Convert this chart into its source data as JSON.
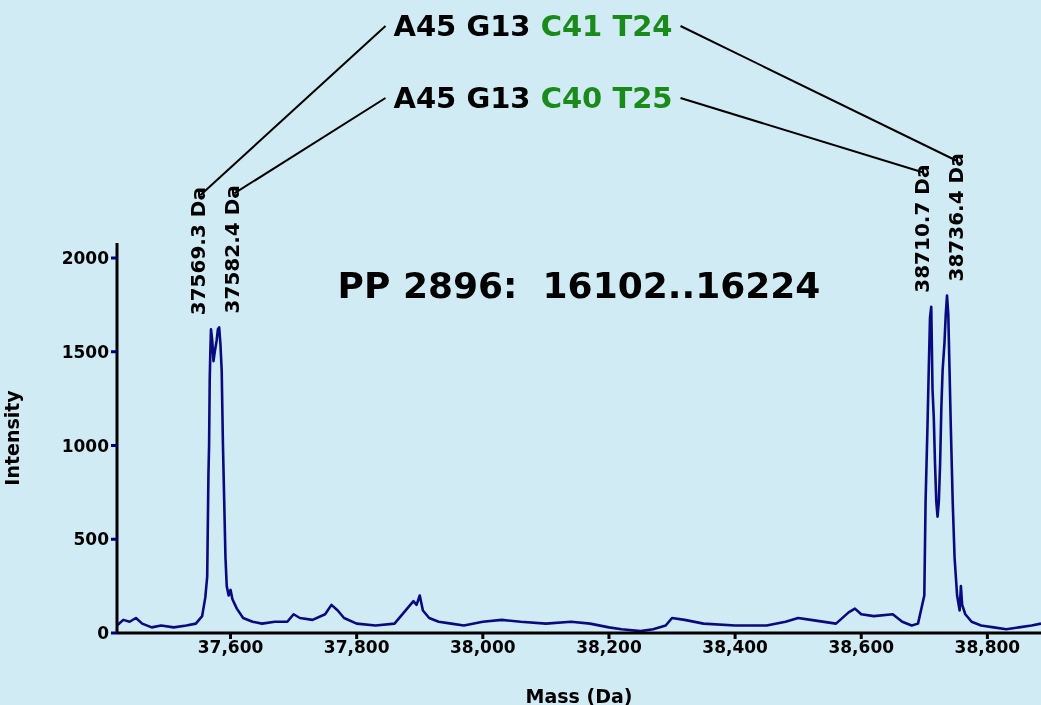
{
  "chart_data": {
    "type": "line",
    "title": "PP 2896:  16102..16224",
    "xlabel": "Mass (Da)",
    "ylabel": "Intensity",
    "annotations": [
      "A45 G13 C41 T24",
      "A45 G13 C40 T25",
      {
        "text": "37569.3 Da",
        "x": 37569.3,
        "y": 1620
      },
      {
        "text": "37582.4 Da",
        "x": 37582.4,
        "y": 1630
      },
      {
        "text": "38710.7 Da",
        "x": 38710.7,
        "y": 1740
      },
      {
        "text": "38736.4 Da",
        "x": 38736.4,
        "y": 1800
      }
    ],
    "xlim": [
      37420,
      38885
    ],
    "xticks": [
      {
        "value": 37600,
        "label": "37,600"
      },
      {
        "value": 37800,
        "label": "37,800"
      },
      {
        "value": 38000,
        "label": "38,000"
      },
      {
        "value": 38200,
        "label": "38,200"
      },
      {
        "value": 38400,
        "label": "38,400"
      },
      {
        "value": 38600,
        "label": "38,600"
      },
      {
        "value": 38800,
        "label": "38,800"
      }
    ],
    "ylim": [
      0,
      2080
    ],
    "yticks": [
      0,
      500,
      1000,
      1500,
      2000
    ],
    "grid": false,
    "legend": false,
    "marker": "none",
    "line_style": "solid",
    "series": [
      {
        "color": "#0a0a80",
        "x": [
          37420,
          37430,
          37440,
          37450,
          37460,
          37475,
          37490,
          37510,
          37530,
          37545,
          37555,
          37560,
          37563,
          37565,
          37566,
          37567,
          37568,
          37569,
          37571,
          37573,
          37575,
          37578,
          37580,
          37582,
          37584,
          37586,
          37588,
          37590,
          37592,
          37594,
          37597,
          37600,
          37603,
          37610,
          37620,
          37635,
          37650,
          37670,
          37690,
          37700,
          37710,
          37730,
          37750,
          37760,
          37770,
          37780,
          37800,
          37830,
          37860,
          37880,
          37890,
          37895,
          37900,
          37905,
          37915,
          37930,
          37950,
          37970,
          38000,
          38030,
          38060,
          38100,
          38140,
          38170,
          38200,
          38220,
          38250,
          38270,
          38290,
          38300,
          38320,
          38350,
          38400,
          38450,
          38480,
          38500,
          38520,
          38560,
          38580,
          38590,
          38600,
          38620,
          38650,
          38665,
          38680,
          38690,
          38700,
          38702,
          38705,
          38707,
          38709,
          38711,
          38713,
          38715,
          38717,
          38719,
          38721,
          38723,
          38725,
          38727,
          38729,
          38732,
          38734,
          38736,
          38738,
          38740,
          38742,
          38745,
          38748,
          38752,
          38756,
          38758,
          38760,
          38765,
          38775,
          38790,
          38810,
          38830,
          38850,
          38870,
          38885
        ],
        "values": [
          40,
          70,
          60,
          80,
          50,
          30,
          40,
          30,
          40,
          50,
          90,
          190,
          300,
          850,
          1000,
          1350,
          1500,
          1620,
          1560,
          1450,
          1500,
          1560,
          1620,
          1630,
          1540,
          1400,
          1000,
          700,
          400,
          250,
          200,
          230,
          180,
          130,
          80,
          60,
          50,
          60,
          60,
          100,
          80,
          70,
          100,
          150,
          120,
          80,
          50,
          40,
          50,
          130,
          170,
          150,
          200,
          120,
          80,
          60,
          50,
          40,
          60,
          70,
          60,
          50,
          60,
          50,
          30,
          20,
          10,
          20,
          40,
          80,
          70,
          50,
          40,
          40,
          60,
          80,
          70,
          50,
          110,
          130,
          100,
          90,
          100,
          60,
          40,
          50,
          200,
          700,
          1100,
          1400,
          1680,
          1740,
          1300,
          1150,
          900,
          700,
          620,
          700,
          900,
          1200,
          1400,
          1550,
          1700,
          1800,
          1700,
          1400,
          1100,
          700,
          400,
          200,
          120,
          250,
          150,
          100,
          60,
          40,
          30,
          20,
          30,
          40,
          50
        ]
      }
    ]
  }
}
